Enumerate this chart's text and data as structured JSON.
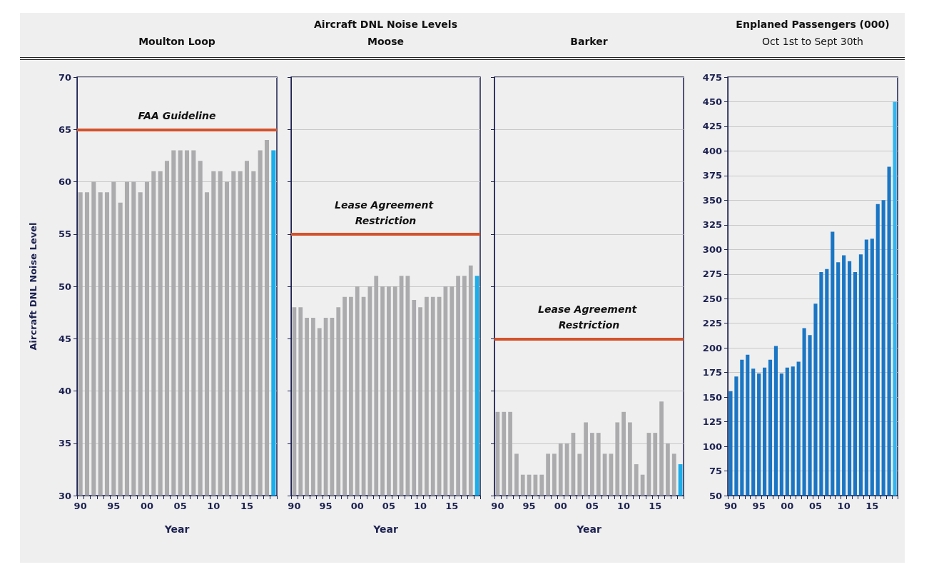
{
  "chart_data": [
    {
      "type": "bar",
      "subtitle": "Moulton Loop",
      "xlabel": "Year",
      "ylabel": "Aircraft DNL Noise Level",
      "categories": [
        "90",
        null,
        null,
        null,
        null,
        "95",
        null,
        null,
        null,
        null,
        "00",
        null,
        null,
        null,
        null,
        "05",
        null,
        null,
        null,
        null,
        "10",
        null,
        null,
        null,
        null,
        "15",
        null,
        null,
        null,
        null
      ],
      "values": [
        59,
        59,
        60,
        59,
        59,
        60,
        58,
        60,
        60,
        59,
        60,
        61,
        61,
        62,
        63,
        63,
        63,
        63,
        62,
        59,
        61,
        61,
        60,
        61,
        61,
        62,
        61,
        63,
        64,
        63
      ],
      "colors": [
        "#ababae",
        "#ababae",
        "#ababae",
        "#ababae",
        "#ababae",
        "#ababae",
        "#ababae",
        "#ababae",
        "#ababae",
        "#ababae",
        "#ababae",
        "#ababae",
        "#ababae",
        "#ababae",
        "#ababae",
        "#ababae",
        "#ababae",
        "#ababae",
        "#ababae",
        "#ababae",
        "#ababae",
        "#ababae",
        "#ababae",
        "#ababae",
        "#ababae",
        "#ababae",
        "#ababae",
        "#ababae",
        "#ababae",
        "#1aaeea"
      ],
      "ylim": [
        30,
        70
      ],
      "yticks": [
        30,
        35,
        40,
        45,
        50,
        55,
        60,
        65,
        70
      ],
      "grid": "y",
      "ref_lines": [
        {
          "axis": "y",
          "value": 65,
          "label": "FAA Guideline",
          "color": "#d4522b"
        }
      ]
    },
    {
      "type": "bar",
      "title": "Aircraft DNL Noise Levels",
      "subtitle": "Moose",
      "xlabel": "Year",
      "categories": [
        "90",
        null,
        null,
        null,
        null,
        "95",
        null,
        null,
        null,
        null,
        "00",
        null,
        null,
        null,
        null,
        "05",
        null,
        null,
        null,
        null,
        "10",
        null,
        null,
        null,
        null,
        "15",
        null,
        null,
        null,
        null
      ],
      "values": [
        48,
        48,
        47,
        47,
        46,
        47,
        47,
        48,
        49,
        49,
        50,
        49,
        50,
        51,
        50,
        50,
        50,
        51,
        51,
        48.7,
        48,
        49,
        49,
        49,
        50,
        50,
        51,
        51,
        52,
        51
      ],
      "colors": [
        "#ababae",
        "#ababae",
        "#ababae",
        "#ababae",
        "#ababae",
        "#ababae",
        "#ababae",
        "#ababae",
        "#ababae",
        "#ababae",
        "#ababae",
        "#ababae",
        "#ababae",
        "#ababae",
        "#ababae",
        "#ababae",
        "#ababae",
        "#ababae",
        "#ababae",
        "#ababae",
        "#ababae",
        "#ababae",
        "#ababae",
        "#ababae",
        "#ababae",
        "#ababae",
        "#ababae",
        "#ababae",
        "#ababae",
        "#1aaeea"
      ],
      "ylim": [
        30,
        70
      ],
      "yticks": [
        30,
        35,
        40,
        45,
        50,
        55,
        60,
        65,
        70
      ],
      "grid": "y",
      "tick_labels": "x",
      "ref_lines": [
        {
          "axis": "y",
          "value": 55,
          "label": "Lease Agreement Restriction",
          "color": "#d4522b"
        }
      ]
    },
    {
      "type": "bar",
      "subtitle": "Barker",
      "xlabel": "Year",
      "categories": [
        "90",
        null,
        null,
        null,
        null,
        "95",
        null,
        null,
        null,
        null,
        "00",
        null,
        null,
        null,
        null,
        "05",
        null,
        null,
        null,
        null,
        "10",
        null,
        null,
        null,
        null,
        "15",
        null,
        null,
        null,
        null
      ],
      "values": [
        38,
        38,
        38,
        34,
        32,
        32,
        32,
        32,
        34,
        34,
        35,
        35,
        36,
        34,
        37,
        36,
        36,
        34,
        34,
        37,
        38,
        37,
        33,
        32,
        36,
        36,
        39,
        35,
        34,
        33
      ],
      "colors": [
        "#ababae",
        "#ababae",
        "#ababae",
        "#ababae",
        "#ababae",
        "#ababae",
        "#ababae",
        "#ababae",
        "#ababae",
        "#ababae",
        "#ababae",
        "#ababae",
        "#ababae",
        "#ababae",
        "#ababae",
        "#ababae",
        "#ababae",
        "#ababae",
        "#ababae",
        "#ababae",
        "#ababae",
        "#ababae",
        "#ababae",
        "#ababae",
        "#ababae",
        "#ababae",
        "#ababae",
        "#ababae",
        "#ababae",
        "#1aaeea"
      ],
      "ylim": [
        30,
        70
      ],
      "yticks": [
        30,
        35,
        40,
        45,
        50,
        55,
        60,
        65,
        70
      ],
      "grid": "y",
      "tick_labels": "x",
      "ref_lines": [
        {
          "axis": "y",
          "value": 45,
          "label": "Lease Agreement Restriction",
          "color": "#d4522b"
        }
      ]
    },
    {
      "type": "bar",
      "title": "Enplaned Passengers (000)",
      "subtitle": "Oct 1st to Sept 30th",
      "categories": [
        "90",
        null,
        null,
        null,
        null,
        "95",
        null,
        null,
        null,
        null,
        "00",
        null,
        null,
        null,
        null,
        "05",
        null,
        null,
        null,
        null,
        "10",
        null,
        null,
        null,
        null,
        "15",
        null,
        null,
        null,
        null
      ],
      "values": [
        156,
        171,
        188,
        193,
        179,
        174,
        180,
        188,
        202,
        174,
        180,
        181,
        186,
        220,
        213,
        245,
        277,
        280,
        318,
        287,
        294,
        288,
        277,
        295,
        310,
        311,
        346,
        350,
        384,
        450
      ],
      "colors": [
        "#1a76c4",
        "#1a76c4",
        "#1a76c4",
        "#1a76c4",
        "#1a76c4",
        "#1a76c4",
        "#1a76c4",
        "#1a76c4",
        "#1a76c4",
        "#1a76c4",
        "#1a76c4",
        "#1a76c4",
        "#1a76c4",
        "#1a76c4",
        "#1a76c4",
        "#1a76c4",
        "#1a76c4",
        "#1a76c4",
        "#1a76c4",
        "#1a76c4",
        "#1a76c4",
        "#1a76c4",
        "#1a76c4",
        "#1a76c4",
        "#1a76c4",
        "#1a76c4",
        "#1a76c4",
        "#1a76c4",
        "#1a76c4",
        "#33b5ee"
      ],
      "ylim": [
        50,
        475
      ],
      "yticks": [
        50,
        75,
        100,
        125,
        150,
        175,
        200,
        225,
        250,
        275,
        300,
        325,
        350,
        375,
        400,
        425,
        450,
        475
      ],
      "grid": "y"
    }
  ]
}
